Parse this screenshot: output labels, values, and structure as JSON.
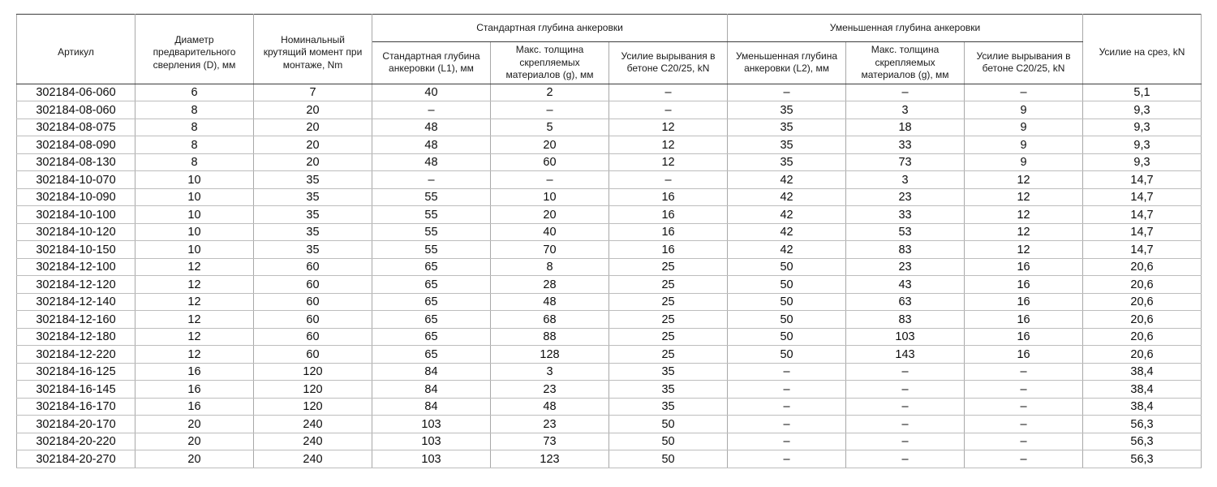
{
  "table": {
    "title_semantic": "anchor-fastener-specification-table",
    "colors": {
      "text": "#111111",
      "grid_light": "#bdbdbd",
      "grid_vertical": "#a8a8a8",
      "grid_header_dark": "#3c3c3c",
      "background": "#ffffff"
    },
    "header": {
      "article": "Артикул",
      "diameter": "Диаметр предварительного сверления (D), мм",
      "torque": "Номинальный крутящий момент при монтаже, Nm",
      "group_standard": "Стандартная глубина анкеровки",
      "group_reduced": "Уменьшенная глубина анкеровки",
      "std_depth": "Стандартная глубина анкеровки (L1), мм",
      "std_thickness": "Макс. толщина скрепляемых материалов (g), мм",
      "std_pullout": "Усилие вырывания в бетоне C20/25, kN",
      "red_depth": "Уменьшенная глубина анкеровки (L2), мм",
      "red_thickness": "Макс. толщина скрепляемых материалов (g), мм",
      "red_pullout": "Усилие вырывания в бетоне C20/25, kN",
      "shear": "Усилие на срез, kN"
    },
    "column_keys": [
      "article",
      "diameter",
      "torque",
      "std-depth-l1",
      "std-max-thickness-g",
      "std-pullout-force",
      "red-depth-l2",
      "red-max-thickness-g",
      "red-pullout-force",
      "shear-force"
    ],
    "rows": [
      [
        "302184-06-060",
        "6",
        "7",
        "40",
        "2",
        "–",
        "–",
        "–",
        "–",
        "5,1"
      ],
      [
        "302184-08-060",
        "8",
        "20",
        "–",
        "–",
        "–",
        "35",
        "3",
        "9",
        "9,3"
      ],
      [
        "302184-08-075",
        "8",
        "20",
        "48",
        "5",
        "12",
        "35",
        "18",
        "9",
        "9,3"
      ],
      [
        "302184-08-090",
        "8",
        "20",
        "48",
        "20",
        "12",
        "35",
        "33",
        "9",
        "9,3"
      ],
      [
        "302184-08-130",
        "8",
        "20",
        "48",
        "60",
        "12",
        "35",
        "73",
        "9",
        "9,3"
      ],
      [
        "302184-10-070",
        "10",
        "35",
        "–",
        "–",
        "–",
        "42",
        "3",
        "12",
        "14,7"
      ],
      [
        "302184-10-090",
        "10",
        "35",
        "55",
        "10",
        "16",
        "42",
        "23",
        "12",
        "14,7"
      ],
      [
        "302184-10-100",
        "10",
        "35",
        "55",
        "20",
        "16",
        "42",
        "33",
        "12",
        "14,7"
      ],
      [
        "302184-10-120",
        "10",
        "35",
        "55",
        "40",
        "16",
        "42",
        "53",
        "12",
        "14,7"
      ],
      [
        "302184-10-150",
        "10",
        "35",
        "55",
        "70",
        "16",
        "42",
        "83",
        "12",
        "14,7"
      ],
      [
        "302184-12-100",
        "12",
        "60",
        "65",
        "8",
        "25",
        "50",
        "23",
        "16",
        "20,6"
      ],
      [
        "302184-12-120",
        "12",
        "60",
        "65",
        "28",
        "25",
        "50",
        "43",
        "16",
        "20,6"
      ],
      [
        "302184-12-140",
        "12",
        "60",
        "65",
        "48",
        "25",
        "50",
        "63",
        "16",
        "20,6"
      ],
      [
        "302184-12-160",
        "12",
        "60",
        "65",
        "68",
        "25",
        "50",
        "83",
        "16",
        "20,6"
      ],
      [
        "302184-12-180",
        "12",
        "60",
        "65",
        "88",
        "25",
        "50",
        "103",
        "16",
        "20,6"
      ],
      [
        "302184-12-220",
        "12",
        "60",
        "65",
        "128",
        "25",
        "50",
        "143",
        "16",
        "20,6"
      ],
      [
        "302184-16-125",
        "16",
        "120",
        "84",
        "3",
        "35",
        "–",
        "–",
        "–",
        "38,4"
      ],
      [
        "302184-16-145",
        "16",
        "120",
        "84",
        "23",
        "35",
        "–",
        "–",
        "–",
        "38,4"
      ],
      [
        "302184-16-170",
        "16",
        "120",
        "84",
        "48",
        "35",
        "–",
        "–",
        "–",
        "38,4"
      ],
      [
        "302184-20-170",
        "20",
        "240",
        "103",
        "23",
        "50",
        "–",
        "–",
        "–",
        "56,3"
      ],
      [
        "302184-20-220",
        "20",
        "240",
        "103",
        "73",
        "50",
        "–",
        "–",
        "–",
        "56,3"
      ],
      [
        "302184-20-270",
        "20",
        "240",
        "103",
        "123",
        "50",
        "–",
        "–",
        "–",
        "56,3"
      ]
    ]
  }
}
